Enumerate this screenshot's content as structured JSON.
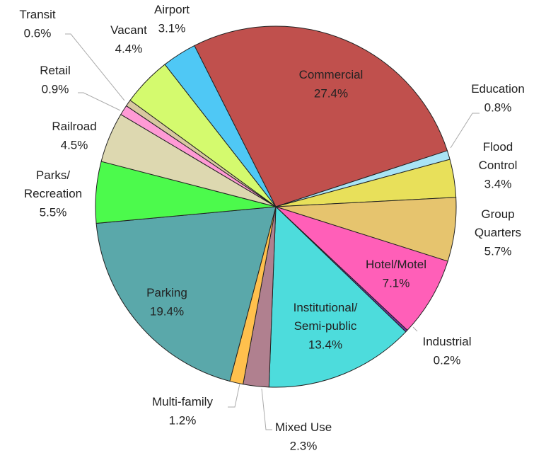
{
  "chart_data": {
    "type": "pie",
    "categories": [
      "Airport",
      "Commercial",
      "Education",
      "Flood\nControl",
      "Group\nQuarters",
      "Hotel/Motel",
      "Industrial",
      "Institutional/\nSemi-public",
      "Mixed Use",
      "Multi-family",
      "Parking",
      "Parks/\nRecreation",
      "Railroad",
      "Retail",
      "Transit",
      "Vacant"
    ],
    "values": [
      3.1,
      27.4,
      0.8,
      3.4,
      5.7,
      7.1,
      0.2,
      13.4,
      2.3,
      1.2,
      19.4,
      5.5,
      4.5,
      0.9,
      0.6,
      4.4
    ],
    "value_labels": [
      "3.1%",
      "27.4%",
      "0.8%",
      "3.4%",
      "5.7%",
      "7.1%",
      "0.2%",
      "13.4%",
      "2.3%",
      "1.2%",
      "19.4%",
      "5.5%",
      "4.5%",
      "0.9%",
      "0.6%",
      "4.4%"
    ],
    "colors": [
      "#4fc8f5",
      "#c0504d",
      "#a9e4f5",
      "#e8e05a",
      "#e6c46e",
      "#ff5fb8",
      "#7030a0",
      "#4ddcdc",
      "#b0808f",
      "#ffc04d",
      "#5aa8aa",
      "#4cfa4c",
      "#ddd8b0",
      "#ff9ad5",
      "#d8c8a0",
      "#d4fa6e"
    ]
  }
}
